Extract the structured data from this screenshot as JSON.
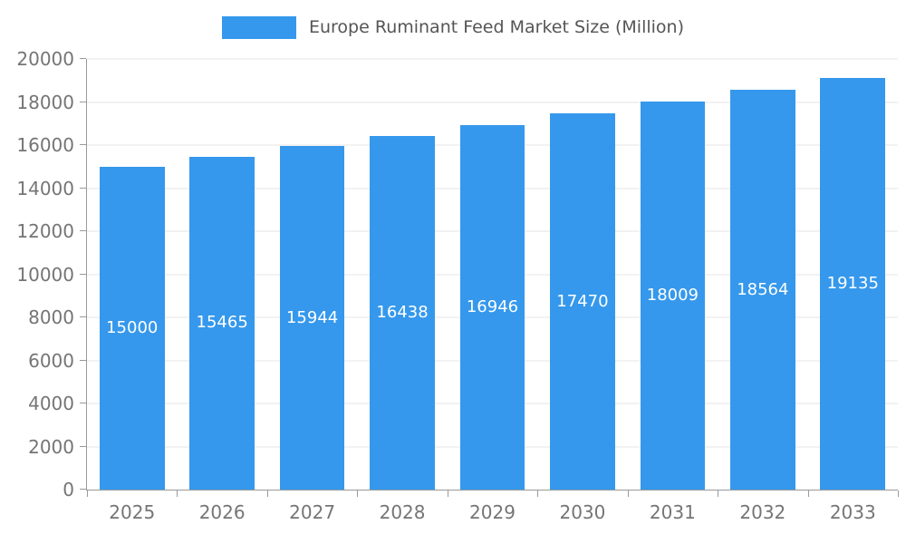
{
  "legend": {
    "label": "Europe Ruminant Feed Market Size (Million)"
  },
  "chart_data": {
    "type": "bar",
    "title": "Europe Ruminant Feed Market Size (Million)",
    "categories": [
      "2025",
      "2026",
      "2027",
      "2028",
      "2029",
      "2030",
      "2031",
      "2032",
      "2033"
    ],
    "values": [
      15000,
      15465,
      15944,
      16438,
      16946,
      17470,
      18009,
      18564,
      19135
    ],
    "xlabel": "",
    "ylabel": "",
    "ylim": [
      0,
      20000
    ],
    "ytick_step": 2000,
    "grid": true,
    "legend_position": "top-center",
    "value_labels": "inside-center",
    "bar_color": "#3598EC",
    "value_label_color": "#ffffff",
    "axis_text_color": "#757575",
    "legend_text_color": "#555555",
    "axis_line_color": "#9a9a9a",
    "gridline_color": "#e5e5e5"
  }
}
